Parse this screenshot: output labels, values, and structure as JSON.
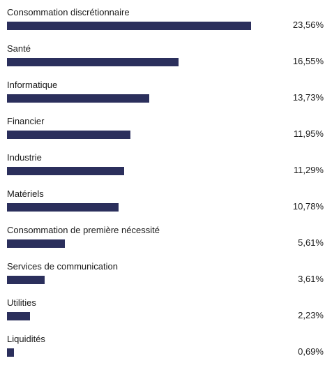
{
  "chart_data": {
    "type": "bar",
    "orientation": "horizontal",
    "categories": [
      "Consommation discrétionnaire",
      "Santé",
      "Informatique",
      "Financier",
      "Industrie",
      "Matériels",
      "Consommation de première nécessité",
      "Services de communication",
      "Utilities",
      "Liquidités"
    ],
    "values": [
      23.56,
      16.55,
      13.73,
      11.95,
      11.29,
      10.78,
      5.61,
      3.61,
      2.23,
      0.69
    ],
    "value_labels": [
      "23,56%",
      "16,55%",
      "13,73%",
      "11,95%",
      "11,29%",
      "10,78%",
      "5,61%",
      "3,61%",
      "2,23%",
      "0,69%"
    ],
    "bar_color": "#2b2f5c",
    "grid": false,
    "legend": "none",
    "xlim": [
      0,
      30.7
    ]
  }
}
